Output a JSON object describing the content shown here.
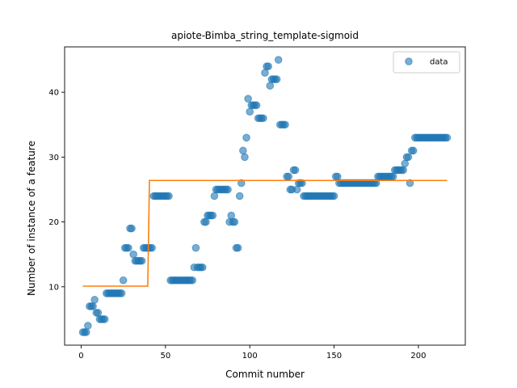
{
  "chart_data": {
    "type": "scatter",
    "title": "apiote-Bimba_string_template-sigmoid",
    "xlabel": "Commit number",
    "ylabel": "Number of instance of a feature",
    "xlim": [
      -9.8,
      227.8
    ],
    "ylim": [
      1.0,
      47.0
    ],
    "xticks": [
      0,
      50,
      100,
      150,
      200
    ],
    "yticks": [
      10,
      20,
      30,
      40
    ],
    "grid": false,
    "legend": {
      "placement": "top-right",
      "entries": [
        "data"
      ]
    },
    "colors": {
      "data": "#1f77b4",
      "fit": "#ff7f0e"
    },
    "series": [
      {
        "name": "data",
        "kind": "scatter",
        "points": [
          [
            1,
            3
          ],
          [
            2,
            3
          ],
          [
            3,
            3
          ],
          [
            4,
            4
          ],
          [
            5,
            7
          ],
          [
            6,
            7
          ],
          [
            7,
            7
          ],
          [
            8,
            8
          ],
          [
            9,
            6
          ],
          [
            10,
            6
          ],
          [
            11,
            5
          ],
          [
            12,
            5
          ],
          [
            13,
            5
          ],
          [
            14,
            5
          ],
          [
            15,
            9
          ],
          [
            16,
            9
          ],
          [
            17,
            9
          ],
          [
            18,
            9
          ],
          [
            19,
            9
          ],
          [
            20,
            9
          ],
          [
            21,
            9
          ],
          [
            22,
            9
          ],
          [
            23,
            9
          ],
          [
            24,
            9
          ],
          [
            25,
            11
          ],
          [
            26,
            16
          ],
          [
            27,
            16
          ],
          [
            28,
            16
          ],
          [
            29,
            19
          ],
          [
            30,
            19
          ],
          [
            31,
            15
          ],
          [
            32,
            14
          ],
          [
            33,
            14
          ],
          [
            34,
            14
          ],
          [
            35,
            14
          ],
          [
            36,
            14
          ],
          [
            37,
            16
          ],
          [
            38,
            16
          ],
          [
            39,
            16
          ],
          [
            40,
            16
          ],
          [
            41,
            16
          ],
          [
            42,
            16
          ],
          [
            43,
            24
          ],
          [
            44,
            24
          ],
          [
            45,
            24
          ],
          [
            46,
            24
          ],
          [
            47,
            24
          ],
          [
            48,
            24
          ],
          [
            49,
            24
          ],
          [
            50,
            24
          ],
          [
            51,
            24
          ],
          [
            52,
            24
          ],
          [
            53,
            11
          ],
          [
            54,
            11
          ],
          [
            55,
            11
          ],
          [
            56,
            11
          ],
          [
            57,
            11
          ],
          [
            58,
            11
          ],
          [
            59,
            11
          ],
          [
            60,
            11
          ],
          [
            61,
            11
          ],
          [
            62,
            11
          ],
          [
            63,
            11
          ],
          [
            64,
            11
          ],
          [
            65,
            11
          ],
          [
            66,
            11
          ],
          [
            67,
            13
          ],
          [
            68,
            16
          ],
          [
            69,
            13
          ],
          [
            70,
            13
          ],
          [
            71,
            13
          ],
          [
            72,
            13
          ],
          [
            73,
            20
          ],
          [
            74,
            20
          ],
          [
            75,
            21
          ],
          [
            76,
            21
          ],
          [
            77,
            21
          ],
          [
            78,
            21
          ],
          [
            79,
            24
          ],
          [
            80,
            25
          ],
          [
            81,
            25
          ],
          [
            82,
            25
          ],
          [
            83,
            25
          ],
          [
            84,
            25
          ],
          [
            85,
            25
          ],
          [
            86,
            25
          ],
          [
            87,
            25
          ],
          [
            88,
            20
          ],
          [
            89,
            21
          ],
          [
            90,
            20
          ],
          [
            91,
            20
          ],
          [
            92,
            16
          ],
          [
            93,
            16
          ],
          [
            94,
            24
          ],
          [
            95,
            26
          ],
          [
            96,
            31
          ],
          [
            97,
            30
          ],
          [
            98,
            33
          ],
          [
            99,
            39
          ],
          [
            100,
            37
          ],
          [
            101,
            38
          ],
          [
            102,
            38
          ],
          [
            103,
            38
          ],
          [
            104,
            38
          ],
          [
            105,
            36
          ],
          [
            106,
            36
          ],
          [
            107,
            36
          ],
          [
            108,
            36
          ],
          [
            109,
            43
          ],
          [
            110,
            44
          ],
          [
            111,
            44
          ],
          [
            112,
            41
          ],
          [
            113,
            42
          ],
          [
            114,
            42
          ],
          [
            115,
            42
          ],
          [
            116,
            42
          ],
          [
            117,
            45
          ],
          [
            118,
            35
          ],
          [
            119,
            35
          ],
          [
            120,
            35
          ],
          [
            121,
            35
          ],
          [
            122,
            27
          ],
          [
            123,
            27
          ],
          [
            124,
            25
          ],
          [
            125,
            25
          ],
          [
            126,
            28
          ],
          [
            127,
            28
          ],
          [
            128,
            25
          ],
          [
            129,
            26
          ],
          [
            130,
            26
          ],
          [
            131,
            26
          ],
          [
            132,
            24
          ],
          [
            133,
            24
          ],
          [
            134,
            24
          ],
          [
            135,
            24
          ],
          [
            136,
            24
          ],
          [
            137,
            24
          ],
          [
            138,
            24
          ],
          [
            139,
            24
          ],
          [
            140,
            24
          ],
          [
            141,
            24
          ],
          [
            142,
            24
          ],
          [
            143,
            24
          ],
          [
            144,
            24
          ],
          [
            145,
            24
          ],
          [
            146,
            24
          ],
          [
            147,
            24
          ],
          [
            148,
            24
          ],
          [
            149,
            24
          ],
          [
            150,
            24
          ],
          [
            151,
            27
          ],
          [
            152,
            27
          ],
          [
            153,
            26
          ],
          [
            154,
            26
          ],
          [
            155,
            26
          ],
          [
            156,
            26
          ],
          [
            157,
            26
          ],
          [
            158,
            26
          ],
          [
            159,
            26
          ],
          [
            160,
            26
          ],
          [
            161,
            26
          ],
          [
            162,
            26
          ],
          [
            163,
            26
          ],
          [
            164,
            26
          ],
          [
            165,
            26
          ],
          [
            166,
            26
          ],
          [
            167,
            26
          ],
          [
            168,
            26
          ],
          [
            169,
            26
          ],
          [
            170,
            26
          ],
          [
            171,
            26
          ],
          [
            172,
            26
          ],
          [
            173,
            26
          ],
          [
            174,
            26
          ],
          [
            175,
            26
          ],
          [
            176,
            27
          ],
          [
            177,
            27
          ],
          [
            178,
            27
          ],
          [
            179,
            27
          ],
          [
            180,
            27
          ],
          [
            181,
            27
          ],
          [
            182,
            27
          ],
          [
            183,
            27
          ],
          [
            184,
            27
          ],
          [
            185,
            27
          ],
          [
            186,
            28
          ],
          [
            187,
            28
          ],
          [
            188,
            28
          ],
          [
            189,
            28
          ],
          [
            190,
            28
          ],
          [
            191,
            28
          ],
          [
            192,
            29
          ],
          [
            193,
            30
          ],
          [
            194,
            30
          ],
          [
            195,
            26
          ],
          [
            196,
            31
          ],
          [
            197,
            31
          ],
          [
            198,
            33
          ],
          [
            199,
            33
          ],
          [
            200,
            33
          ],
          [
            201,
            33
          ],
          [
            202,
            33
          ],
          [
            203,
            33
          ],
          [
            204,
            33
          ],
          [
            205,
            33
          ],
          [
            206,
            33
          ],
          [
            207,
            33
          ],
          [
            208,
            33
          ],
          [
            209,
            33
          ],
          [
            210,
            33
          ],
          [
            211,
            33
          ],
          [
            212,
            33
          ],
          [
            213,
            33
          ],
          [
            214,
            33
          ],
          [
            215,
            33
          ],
          [
            216,
            33
          ],
          [
            217,
            33
          ]
        ]
      },
      {
        "kind": "line",
        "points": [
          [
            1,
            10.1
          ],
          [
            39.5,
            10.1
          ],
          [
            40.5,
            26.4
          ],
          [
            217,
            26.4
          ]
        ]
      }
    ]
  }
}
